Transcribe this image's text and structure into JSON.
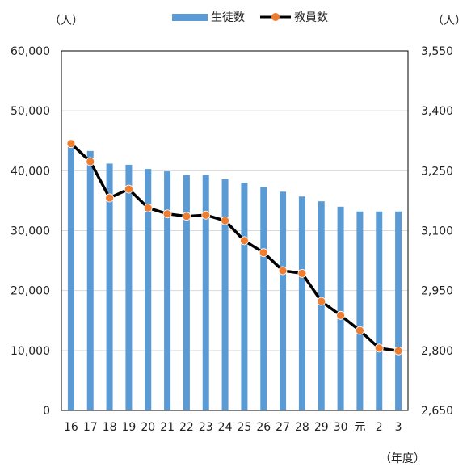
{
  "chart_data": {
    "type": "bar+line",
    "categories": [
      "16",
      "17",
      "18",
      "19",
      "20",
      "21",
      "22",
      "23",
      "24",
      "25",
      "26",
      "27",
      "28",
      "29",
      "30",
      "元",
      "2",
      "3"
    ],
    "series": [
      {
        "name": "生徒数",
        "type": "bar",
        "axis": "left",
        "color": "#5b9bd5",
        "values": [
          44800,
          43300,
          41200,
          41000,
          40300,
          39900,
          39300,
          39300,
          38600,
          38000,
          37300,
          36500,
          35700,
          34900,
          34000,
          33200,
          33200,
          33200
        ]
      },
      {
        "name": "教員数",
        "type": "line",
        "axis": "right",
        "color": "#000000",
        "marker_color": "#ed7d31",
        "values": [
          3318,
          3273,
          3182,
          3204,
          3157,
          3142,
          3136,
          3139,
          3125,
          3075,
          3045,
          3000,
          2993,
          2923,
          2888,
          2850,
          2806,
          2799
        ]
      }
    ],
    "left_axis": {
      "unit_label": "（人）",
      "min": 0,
      "max": 60000,
      "ticks": [
        "0",
        "10,000",
        "20,000",
        "30,000",
        "40,000",
        "50,000",
        "60,000"
      ]
    },
    "right_axis": {
      "unit_label": "（人）",
      "min": 2650,
      "max": 3550,
      "ticks": [
        "2,650",
        "2,800",
        "2,950",
        "3,100",
        "3,250",
        "3,400",
        "3,550"
      ]
    },
    "xlabel": "（年度）",
    "legend_position": "top",
    "grid": true
  }
}
